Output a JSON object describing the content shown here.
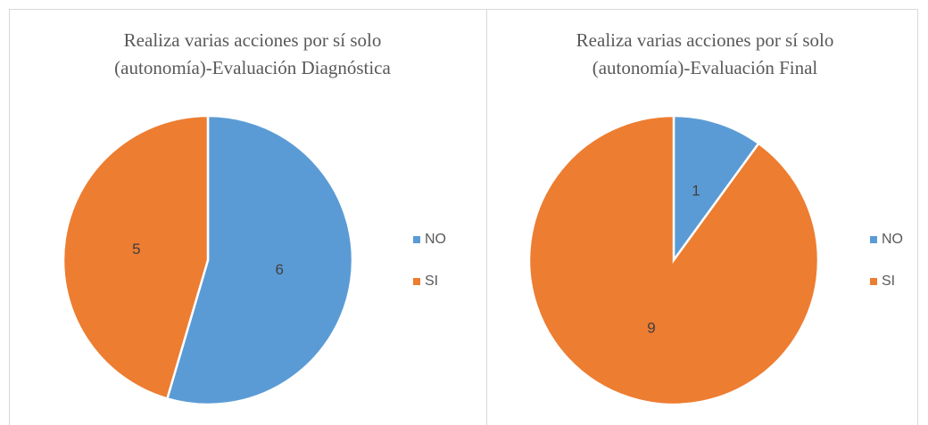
{
  "chart_data": [
    {
      "type": "pie",
      "title": [
        "Realiza  varias acciones por sí solo",
        "(autonomía)-Evaluación Diagnóstica"
      ],
      "categories": [
        "NO",
        "SI"
      ],
      "values": [
        6,
        5
      ],
      "colors": [
        "#5b9bd5",
        "#ed7d31"
      ],
      "legend": "right"
    },
    {
      "type": "pie",
      "title": [
        "Realiza varias acciones por sí solo",
        "(autonomía)-Evaluación Final"
      ],
      "categories": [
        "NO",
        "SI"
      ],
      "values": [
        1,
        9
      ],
      "colors": [
        "#5b9bd5",
        "#ed7d31"
      ],
      "legend": "right"
    }
  ]
}
